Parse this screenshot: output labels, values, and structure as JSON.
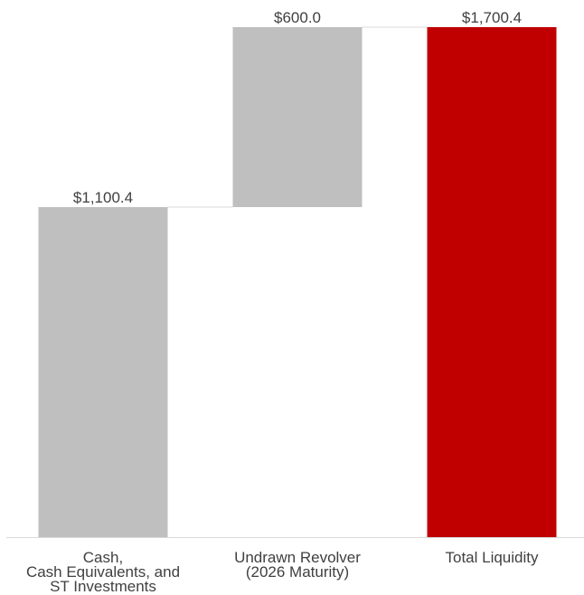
{
  "chart_data": {
    "type": "waterfall",
    "categories": [
      [
        "Cash,",
        "Cash Equivalents, and",
        "ST Investments"
      ],
      [
        "Undrawn Revolver",
        "(2026 Maturity)"
      ],
      [
        "Total Liquidity"
      ]
    ],
    "bars": [
      {
        "start": 0,
        "end": 1100.4,
        "value": 1100.4,
        "label": "$1,100.4",
        "color": "#bfbfbf"
      },
      {
        "start": 1100.4,
        "end": 1700.4,
        "value": 600.0,
        "label": "$600.0",
        "color": "#bfbfbf"
      },
      {
        "start": 0,
        "end": 1700.4,
        "value": 1700.4,
        "label": "$1,700.4",
        "color": "#c00000"
      }
    ],
    "ylim": [
      0,
      1700.4
    ],
    "grid": false,
    "legend": "none",
    "title": "",
    "xlabel": "",
    "ylabel": "",
    "colors": {
      "increment": "#bfbfbf",
      "total": "#c00000",
      "connector": "#d9d9d9",
      "axis": "#d9d9d9",
      "text": "#404040"
    }
  }
}
